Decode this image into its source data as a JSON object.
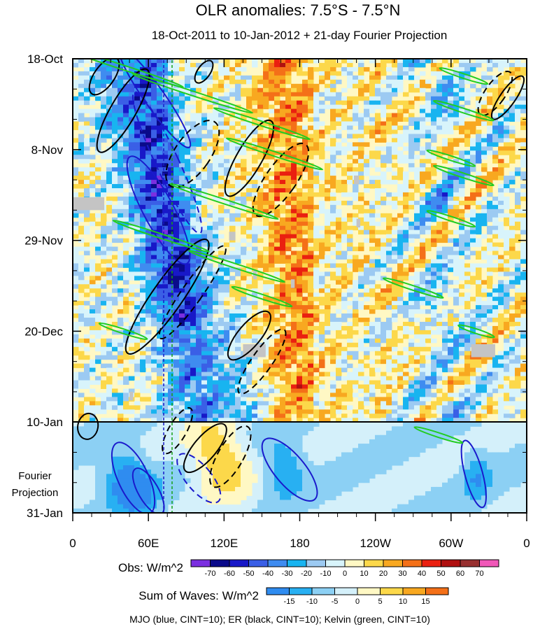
{
  "chart_data": {
    "type": "heatmap",
    "title": "OLR anomalies: 7.5°S - 7.5°N",
    "subtitle": "18-Oct-2011 to 10-Jan-2012 + 21-day Fourier Projection",
    "x_ticks": [
      "0",
      "60E",
      "120E",
      "180",
      "120W",
      "60W",
      "0"
    ],
    "x_tick_values": [
      0,
      60,
      120,
      180,
      240,
      300,
      360
    ],
    "y_ticks": [
      "18-Oct",
      "8-Nov",
      "29-Nov",
      "20-Dec",
      "10-Jan",
      "31-Jan"
    ],
    "y_tick_days": [
      0,
      21,
      42,
      63,
      84,
      105
    ],
    "projection_label": [
      "Fourier",
      "Projection"
    ],
    "projection_start_day": 84,
    "xlim": [
      0,
      360
    ],
    "ylim_days": [
      0,
      105
    ],
    "obs_colorbar": {
      "label": "Obs: W/m^2",
      "levels": [
        "-70",
        "-60",
        "-50",
        "-40",
        "-30",
        "-20",
        "-10",
        "0",
        "10",
        "20",
        "30",
        "40",
        "50",
        "60",
        "70"
      ],
      "colors": [
        "#7b2fe0",
        "#0a0a8a",
        "#1818c8",
        "#3a5fe6",
        "#3f8cf0",
        "#18b4f0",
        "#9ccaf2",
        "#d8f4fb",
        "#fff8c4",
        "#fcd84a",
        "#f8a820",
        "#f47018",
        "#ea2010",
        "#b01010",
        "#983030",
        "#f058b8"
      ]
    },
    "waves_colorbar": {
      "label": "Sum of Waves: W/m^2",
      "levels": [
        "-15",
        "-10",
        "-5",
        "0",
        "5",
        "10",
        "15"
      ],
      "colors": [
        "#2f8cf0",
        "#28b0f2",
        "#8cd0f4",
        "#d4f0fa",
        "#fff8c4",
        "#fcd84a",
        "#f8a820",
        "#f47018"
      ]
    },
    "contours": [
      {
        "name": "MJO",
        "color": "#1a1acc",
        "cint": 10
      },
      {
        "name": "ER",
        "color": "#000000",
        "cint": 10
      },
      {
        "name": "Kelvin",
        "color": "#22cc22",
        "cint": 10
      }
    ],
    "footnote": "MJO (blue, CINT=10); ER (black, CINT=10); Kelvin (green, CINT=10)"
  }
}
